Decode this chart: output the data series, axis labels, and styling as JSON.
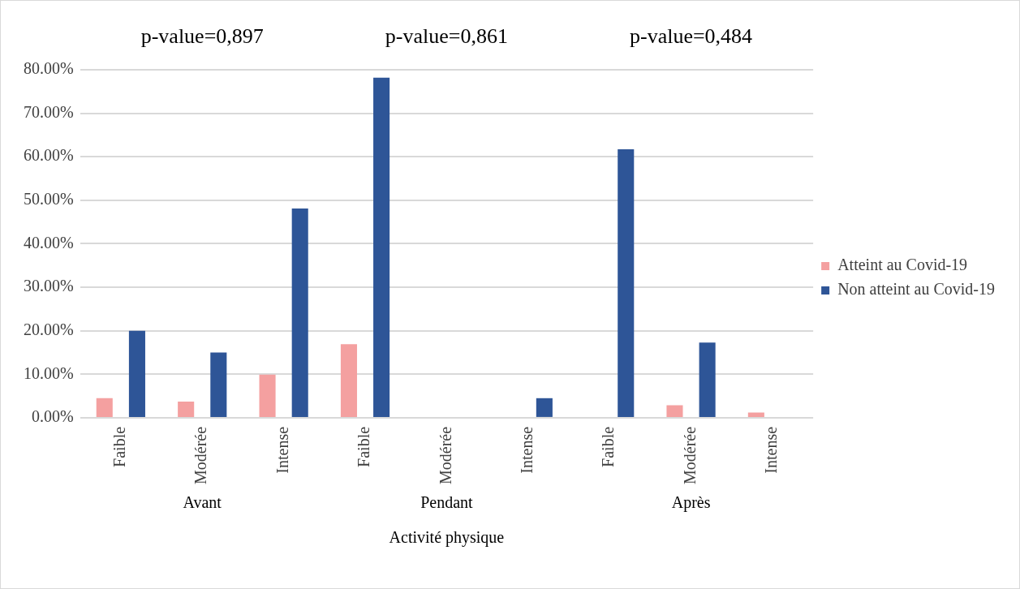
{
  "chart_data": {
    "type": "bar",
    "xlabel": "Activité physique",
    "categories": [
      "Faible",
      "Modérée",
      "Intense",
      "Faible",
      "Modérée",
      "Intense",
      "Faible",
      "Modérée",
      "Intense"
    ],
    "series": [
      {
        "name": "Atteint au Covid-19",
        "color": "#f4a0a0",
        "values": [
          4.5,
          3.7,
          9.9,
          16.9,
          0,
          0,
          0,
          2.9,
          1.2
        ]
      },
      {
        "name": "Non atteint au Covid-19",
        "color": "#2e5597",
        "values": [
          20,
          15,
          48.1,
          78.2,
          0,
          4.5,
          61.7,
          17.3,
          0
        ]
      }
    ],
    "ylim": [
      0,
      80
    ],
    "yticks": [
      {
        "value": 0,
        "label": "0.00%"
      },
      {
        "value": 10,
        "label": "10.00%"
      },
      {
        "value": 20,
        "label": "20.00%"
      },
      {
        "value": 30,
        "label": "30.00%"
      },
      {
        "value": 40,
        "label": "40.00%"
      },
      {
        "value": 50,
        "label": "50.00%"
      },
      {
        "value": 60,
        "label": "60.00%"
      },
      {
        "value": 70,
        "label": "70.00%"
      },
      {
        "value": 80,
        "label": "80.00%"
      }
    ],
    "grid": "y",
    "legend": "right",
    "annotations": [
      "p-value=0,897",
      "p-value=0,861",
      "p-value=0,484",
      "Avant",
      "Pendant",
      "Après"
    ]
  }
}
